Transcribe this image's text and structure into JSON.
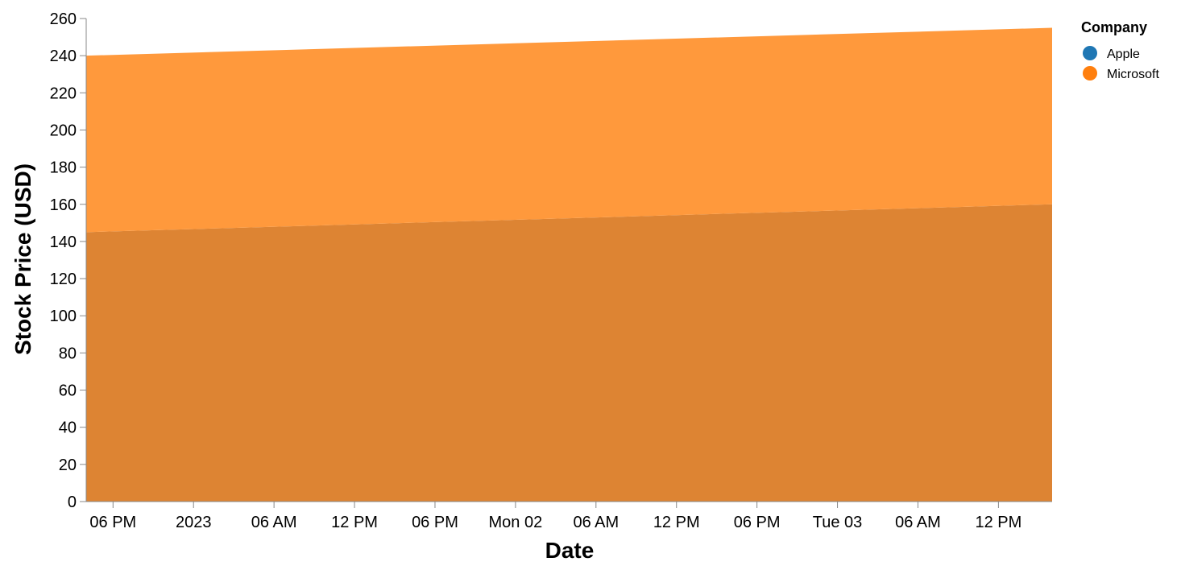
{
  "chart_data": {
    "type": "area",
    "stacked": true,
    "xlabel": "Date",
    "ylabel": "Stock Price (USD)",
    "x_start": "2022-12-31 16:00",
    "x_end": "2023-01-03 16:00",
    "x_ticks": [
      "06 PM",
      "2023",
      "06 AM",
      "12 PM",
      "06 PM",
      "Mon 02",
      "06 AM",
      "12 PM",
      "06 PM",
      "Tue 03",
      "06 AM",
      "12 PM"
    ],
    "ylim": [
      0,
      260
    ],
    "y_ticks": [
      0,
      20,
      40,
      60,
      80,
      100,
      120,
      140,
      160,
      180,
      200,
      220,
      240,
      260
    ],
    "series": [
      {
        "name": "Apple",
        "color": "#1f77b4",
        "dates": [
          "2022-12-31 16:00",
          "2023-01-03 16:00"
        ],
        "values": [
          145,
          160
        ]
      },
      {
        "name": "Microsoft",
        "color": "#ff7f0e",
        "dates": [
          "2022-12-31 16:00",
          "2023-01-03 16:00"
        ],
        "values": [
          95,
          95
        ]
      }
    ],
    "legend": {
      "title": "Company",
      "position": "top-right"
    },
    "grid": false
  }
}
